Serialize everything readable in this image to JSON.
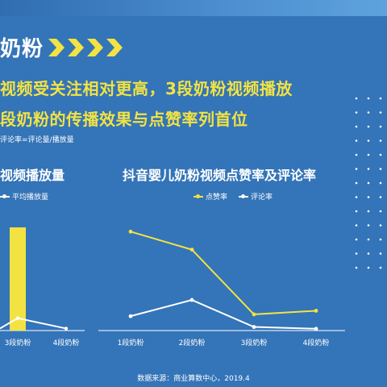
{
  "header": {
    "title": "奶粉"
  },
  "headline": {
    "line1": "视频受关注相对更高，3段奶粉视频播放",
    "line2": "段奶粉的传播效果与点赞率列首位"
  },
  "note": "评论率=评论量/播放量",
  "source": "数据来源：商业算数中心，2019.4",
  "colors": {
    "background": "#3474b8",
    "yellow": "#f2e343",
    "white": "#ffffff"
  },
  "chart_data": [
    {
      "type": "bar",
      "title": "视频播放量",
      "categories": [
        "3段奶粉",
        "4段奶粉"
      ],
      "series": [
        {
          "name": "平均播放量",
          "type": "line",
          "values": [
            0.12,
            0.02
          ]
        }
      ],
      "bars": {
        "values": [
          1.0,
          0.0
        ]
      },
      "legend": "top-left"
    },
    {
      "type": "line",
      "title": "抖音婴儿奶粉视频点赞率及评论率",
      "categories": [
        "1段奶粉",
        "2段奶粉",
        "3段奶粉",
        "4段奶粉"
      ],
      "series": [
        {
          "name": "点赞率",
          "color": "#f2e343",
          "values": [
            0.55,
            0.45,
            0.09,
            0.11
          ]
        },
        {
          "name": "评论率",
          "color": "#ffffff",
          "values": [
            0.08,
            0.17,
            0.02,
            0.01
          ]
        }
      ],
      "ylim": [
        0,
        0.65
      ],
      "legend": "top-center"
    }
  ]
}
